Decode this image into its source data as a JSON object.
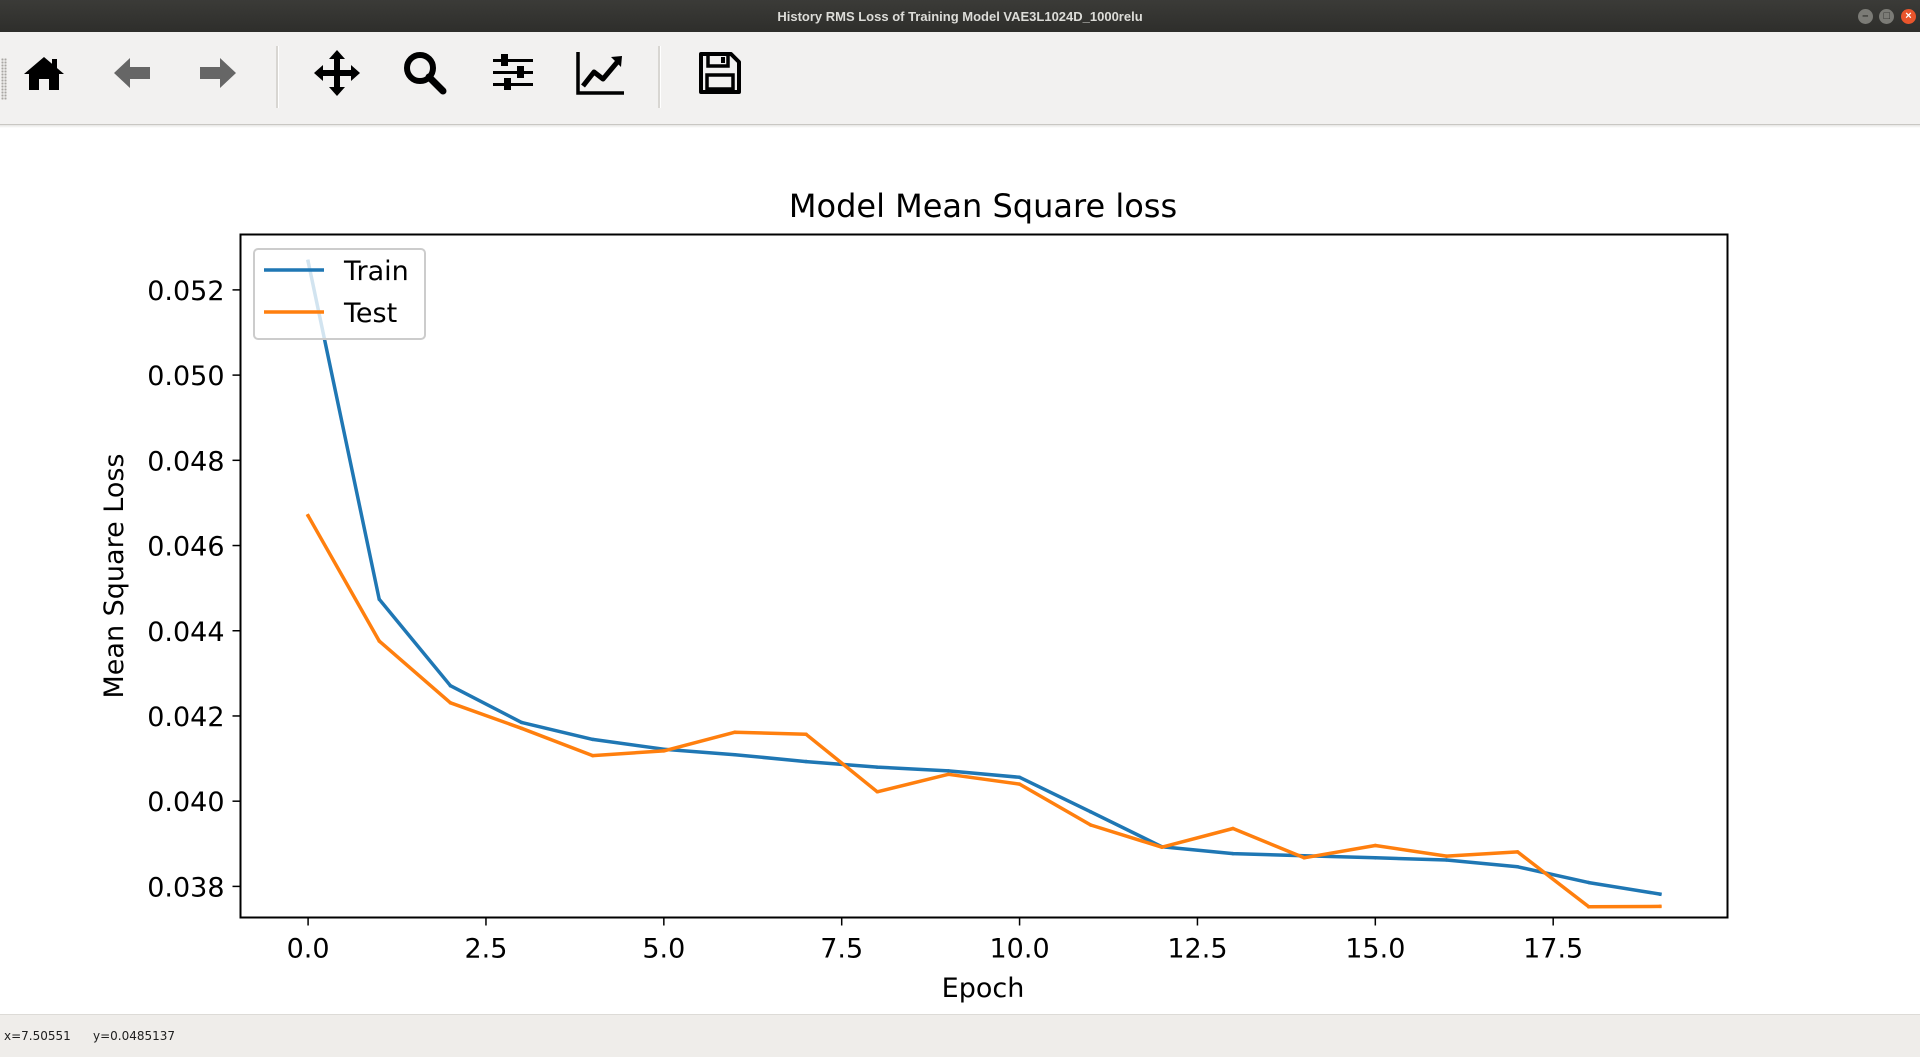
{
  "window": {
    "title": "History RMS Loss of Training Model VAE3L1024D_1000relu",
    "controls": [
      "minimize",
      "maximize",
      "close"
    ]
  },
  "toolbar": {
    "tools": [
      {
        "name": "home",
        "icon": "home-icon"
      },
      {
        "name": "back",
        "icon": "arrow-left-icon"
      },
      {
        "name": "forward",
        "icon": "arrow-right-icon"
      },
      {
        "name": "pan",
        "icon": "move-icon"
      },
      {
        "name": "zoom",
        "icon": "magnifier-icon"
      },
      {
        "name": "configure-subplots",
        "icon": "sliders-icon"
      },
      {
        "name": "edit-axes",
        "icon": "line-chart-icon"
      },
      {
        "name": "save",
        "icon": "floppy-disk-icon"
      }
    ]
  },
  "status": {
    "x_readout": "x=7.50551",
    "y_readout": "y=0.0485137"
  },
  "chart_data": {
    "type": "line",
    "title": "Model Mean Square loss",
    "xlabel": "Epoch",
    "ylabel": "Mean Square Loss",
    "xlim": [
      -0.95,
      19.95
    ],
    "ylim": [
      0.03727,
      0.0533
    ],
    "xticks": [
      "0.0",
      "2.5",
      "5.0",
      "7.5",
      "10.0",
      "12.5",
      "15.0",
      "17.5"
    ],
    "yticks": [
      "0.038",
      "0.040",
      "0.042",
      "0.044",
      "0.046",
      "0.048",
      "0.050",
      "0.052"
    ],
    "grid": false,
    "legend_position": "upper left",
    "x": [
      0,
      1,
      2,
      3,
      4,
      5,
      6,
      7,
      8,
      9,
      10,
      11,
      12,
      13,
      14,
      15,
      16,
      17,
      18,
      19
    ],
    "series": [
      {
        "name": "Train",
        "color": "#1f77b4",
        "values": [
          0.05267,
          0.04474,
          0.04271,
          0.04185,
          0.04145,
          0.04122,
          0.04109,
          0.04093,
          0.0408,
          0.04071,
          0.04056,
          0.03975,
          0.03893,
          0.03877,
          0.03872,
          0.03867,
          0.03862,
          0.03846,
          0.03809,
          0.03782
        ]
      },
      {
        "name": "Test",
        "color": "#ff7f0e",
        "values": [
          0.0467,
          0.04376,
          0.04231,
          0.04171,
          0.04107,
          0.04118,
          0.04162,
          0.04157,
          0.04022,
          0.04063,
          0.0404,
          0.03944,
          0.03892,
          0.03936,
          0.03867,
          0.03896,
          0.03871,
          0.03881,
          0.03752,
          0.03753
        ]
      }
    ]
  }
}
